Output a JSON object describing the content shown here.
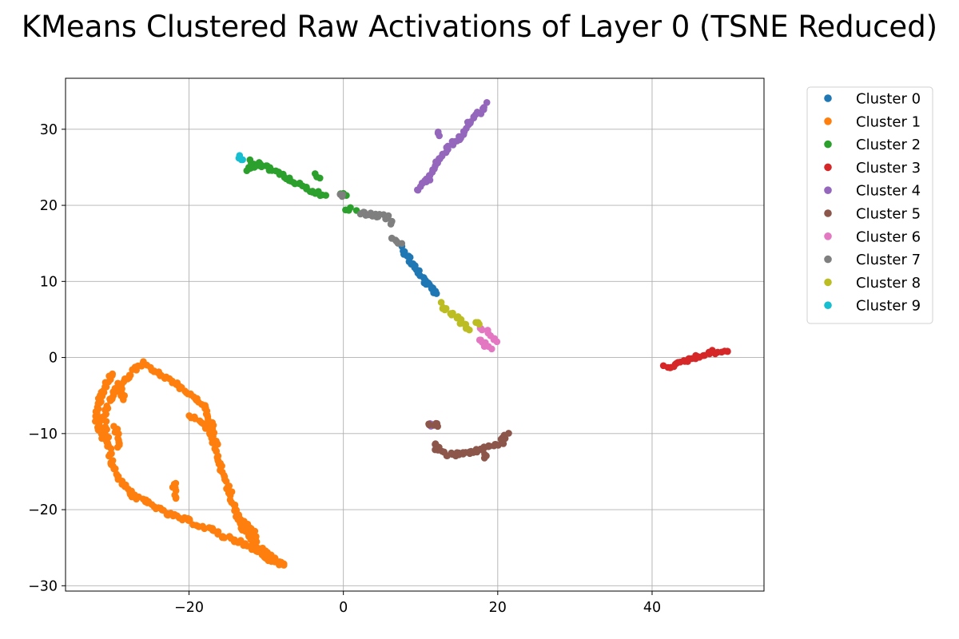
{
  "chart_data": {
    "type": "scatter",
    "title": "KMeans Clustered Raw Activations of Layer 0 (TSNE Reduced)",
    "xlabel": "",
    "ylabel": "",
    "xlim": [
      -36,
      54.5
    ],
    "ylim": [
      -30.7,
      36.7
    ],
    "xticks": [
      -20,
      0,
      20,
      40
    ],
    "yticks": [
      -30,
      -20,
      -10,
      0,
      10,
      20,
      30
    ],
    "grid": true,
    "legend_position": "outside-top-right",
    "series": [
      {
        "name": "Cluster 0",
        "color": "#1f77b4",
        "segments": [
          [
            [
              7.5,
              14.5
            ],
            [
              8.5,
              13
            ],
            [
              9.5,
              11.5
            ],
            [
              10.5,
              10
            ],
            [
              11.5,
              9
            ],
            [
              12.2,
              8.2
            ]
          ]
        ]
      },
      {
        "name": "Cluster 1",
        "color": "#ff7f0e",
        "segments": [
          [
            [
              -26,
              -0.8
            ],
            [
              -24,
              -2
            ],
            [
              -21.5,
              -3.5
            ],
            [
              -19.5,
              -5
            ],
            [
              -18,
              -6.5
            ],
            [
              -17,
              -9
            ],
            [
              -16.5,
              -11.5
            ],
            [
              -16,
              -14.2
            ],
            [
              -15,
              -17
            ],
            [
              -14,
              -20
            ],
            [
              -13,
              -22.5
            ],
            [
              -11.5,
              -24.5
            ],
            [
              -9.5,
              -26
            ],
            [
              -7.7,
              -27.2
            ]
          ],
          [
            [
              -26,
              -0.8
            ],
            [
              -28,
              -2.5
            ],
            [
              -30,
              -5
            ],
            [
              -31,
              -8
            ],
            [
              -30.5,
              -11
            ],
            [
              -30,
              -14
            ],
            [
              -29,
              -16
            ],
            [
              -27.5,
              -18
            ],
            [
              -25.5,
              -19
            ],
            [
              -23,
              -20.5
            ],
            [
              -20,
              -21.5
            ],
            [
              -17,
              -22.7
            ],
            [
              -15.5,
              -23.5
            ],
            [
              -14,
              -24
            ],
            [
              -12,
              -25
            ],
            [
              -10,
              -26.3
            ],
            [
              -8,
              -27.3
            ]
          ],
          [
            [
              -30,
              -2
            ],
            [
              -31.5,
              -5
            ],
            [
              -32,
              -8
            ],
            [
              -31.5,
              -10.5
            ]
          ],
          [
            [
              -20,
              -7.5
            ],
            [
              -18,
              -9
            ],
            [
              -17,
              -11
            ]
          ],
          [
            [
              -22,
              -16.5
            ],
            [
              -21.5,
              -18.5
            ]
          ],
          [
            [
              -13.5,
              -21
            ],
            [
              -12,
              -22.5
            ],
            [
              -11,
              -24
            ]
          ],
          [
            [
              -29,
              -3.5
            ],
            [
              -28.5,
              -5.5
            ]
          ],
          [
            [
              -29.5,
              -9
            ],
            [
              -29,
              -12
            ]
          ]
        ]
      },
      {
        "name": "Cluster 2",
        "color": "#2ca02c",
        "segments": [
          [
            [
              -12.5,
              24.4
            ],
            [
              -11,
              25.5
            ],
            [
              -9.5,
              24.8
            ],
            [
              -7.5,
              23.7
            ],
            [
              -5,
              22.3
            ],
            [
              -2.5,
              21.2
            ]
          ],
          [
            [
              -12,
              25.8
            ],
            [
              -10.5,
              25.2
            ]
          ],
          [
            [
              -3.5,
              24
            ],
            [
              -3,
              23.5
            ]
          ],
          [
            [
              -0.5,
              21.4
            ],
            [
              0.5,
              21.3
            ]
          ],
          [
            [
              0.5,
              19.6
            ],
            [
              1.5,
              19.4
            ]
          ]
        ]
      },
      {
        "name": "Cluster 3",
        "color": "#d62728",
        "segments": [
          [
            [
              41.5,
              -1.2
            ],
            [
              43,
              -1
            ],
            [
              44.5,
              -0.3
            ],
            [
              46,
              0.2
            ],
            [
              48,
              0.7
            ],
            [
              50,
              0.9
            ]
          ]
        ]
      },
      {
        "name": "Cluster 4",
        "color": "#9467bd",
        "segments": [
          [
            [
              9.5,
              22
            ],
            [
              11,
              23.5
            ],
            [
              12,
              25.5
            ],
            [
              13.5,
              27.5
            ],
            [
              15,
              28.8
            ],
            [
              16.5,
              31
            ],
            [
              18,
              32.5
            ],
            [
              18.5,
              33.3
            ]
          ],
          [
            [
              12.3,
              29.5
            ],
            [
              12.5,
              29.2
            ]
          ],
          [
            [
              11,
              -8.8
            ],
            [
              11.2,
              -8.8
            ]
          ]
        ]
      },
      {
        "name": "Cluster 5",
        "color": "#8c564b",
        "segments": [
          [
            [
              12,
              -12
            ],
            [
              13.5,
              -12.8
            ],
            [
              15,
              -12.7
            ],
            [
              17,
              -12.3
            ],
            [
              19,
              -11.7
            ],
            [
              20.5,
              -11.2
            ],
            [
              21,
              -10.5
            ],
            [
              21.2,
              -9.8
            ]
          ],
          [
            [
              11,
              -9
            ],
            [
              11.5,
              -8.8
            ]
          ],
          [
            [
              12,
              -8.8
            ],
            [
              12.2,
              -9
            ]
          ],
          [
            [
              12,
              -11.2
            ],
            [
              12.3,
              -12
            ]
          ],
          [
            [
              18.5,
              -12.7
            ],
            [
              18.5,
              -13
            ]
          ]
        ]
      },
      {
        "name": "Cluster 6",
        "color": "#e377c2",
        "segments": [
          [
            [
              17.5,
              2.2
            ],
            [
              18.2,
              1.7
            ],
            [
              19,
              1
            ]
          ],
          [
            [
              17.7,
              3.9
            ],
            [
              17.9,
              3.8
            ]
          ],
          [
            [
              18.7,
              3.7
            ],
            [
              19,
              3
            ]
          ],
          [
            [
              19.5,
              2.2
            ],
            [
              19.7,
              2.3
            ]
          ]
        ]
      },
      {
        "name": "Cluster 7",
        "color": "#7f7f7f",
        "segments": [
          [
            [
              -0.5,
              21.3
            ],
            [
              0,
              21.2
            ]
          ],
          [
            [
              2,
              19
            ],
            [
              4,
              18.7
            ],
            [
              6,
              18.4
            ],
            [
              6.2,
              17.5
            ]
          ],
          [
            [
              6.3,
              15.7
            ],
            [
              7,
              15.2
            ],
            [
              7.5,
              14.8
            ]
          ]
        ]
      },
      {
        "name": "Cluster 8",
        "color": "#bcbd22",
        "segments": [
          [
            [
              12.5,
              7
            ],
            [
              14,
              5.8
            ],
            [
              15.5,
              4.5
            ],
            [
              16.5,
              3.6
            ]
          ],
          [
            [
              17.2,
              4.5
            ],
            [
              17.5,
              4.3
            ]
          ]
        ]
      },
      {
        "name": "Cluster 9",
        "color": "#17becf",
        "segments": [
          [
            [
              -13.5,
              26.5
            ],
            [
              -13,
              25.8
            ]
          ]
        ]
      }
    ]
  }
}
